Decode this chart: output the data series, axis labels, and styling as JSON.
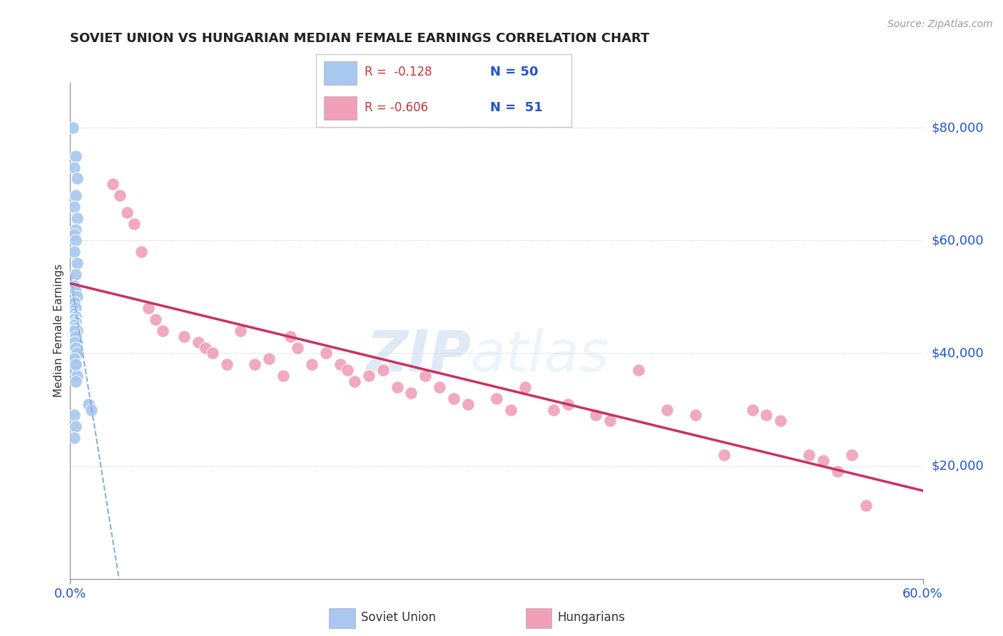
{
  "title": "SOVIET UNION VS HUNGARIAN MEDIAN FEMALE EARNINGS CORRELATION CHART",
  "source": "Source: ZipAtlas.com",
  "ylabel": "Median Female Earnings",
  "y_tick_labels": [
    "$20,000",
    "$40,000",
    "$60,000",
    "$80,000"
  ],
  "y_tick_values": [
    20000,
    40000,
    60000,
    80000
  ],
  "xlim": [
    0.0,
    0.6
  ],
  "ylim": [
    0,
    88000
  ],
  "legend_r_blue": "R =  -0.128",
  "legend_n_blue": "N = 50",
  "legend_r_pink": "R = -0.606",
  "legend_n_pink": "N =  51",
  "blue_color": "#a8c8f0",
  "pink_color": "#f0a0b8",
  "blue_line_color": "#8ab0d8",
  "pink_line_color": "#cc3060",
  "watermark_zip": "ZIP",
  "watermark_atlas": "atlas",
  "soviet_x": [
    0.002,
    0.004,
    0.003,
    0.005,
    0.004,
    0.003,
    0.005,
    0.004,
    0.003,
    0.004,
    0.003,
    0.005,
    0.004,
    0.003,
    0.004,
    0.005,
    0.003,
    0.004,
    0.003,
    0.004,
    0.003,
    0.004,
    0.003,
    0.004,
    0.005,
    0.003,
    0.004,
    0.003,
    0.005,
    0.004,
    0.003,
    0.005,
    0.004,
    0.003,
    0.004,
    0.003,
    0.005,
    0.004,
    0.003,
    0.004,
    0.003,
    0.004,
    0.005,
    0.003,
    0.004,
    0.013,
    0.015,
    0.003,
    0.004,
    0.003
  ],
  "soviet_y": [
    80000,
    75000,
    73000,
    71000,
    68000,
    66000,
    64000,
    62000,
    61000,
    60000,
    58000,
    56000,
    54000,
    52000,
    51000,
    50000,
    49000,
    48000,
    47000,
    46500,
    46000,
    45500,
    45000,
    44500,
    44000,
    43500,
    43000,
    42500,
    42000,
    41500,
    41000,
    40500,
    40000,
    39000,
    38000,
    37000,
    36000,
    35000,
    44000,
    43000,
    42000,
    41000,
    40000,
    39000,
    38000,
    31000,
    30000,
    29000,
    27000,
    25000
  ],
  "hungarian_x": [
    0.03,
    0.035,
    0.04,
    0.045,
    0.05,
    0.055,
    0.06,
    0.065,
    0.08,
    0.09,
    0.095,
    0.1,
    0.11,
    0.12,
    0.13,
    0.14,
    0.15,
    0.155,
    0.16,
    0.17,
    0.18,
    0.19,
    0.195,
    0.2,
    0.21,
    0.22,
    0.23,
    0.24,
    0.25,
    0.26,
    0.27,
    0.28,
    0.3,
    0.31,
    0.32,
    0.34,
    0.35,
    0.37,
    0.38,
    0.4,
    0.42,
    0.44,
    0.46,
    0.48,
    0.49,
    0.5,
    0.52,
    0.53,
    0.54,
    0.55,
    0.56
  ],
  "hungarian_y": [
    70000,
    68000,
    65000,
    63000,
    58000,
    48000,
    46000,
    44000,
    43000,
    42000,
    41000,
    40000,
    38000,
    44000,
    38000,
    39000,
    36000,
    43000,
    41000,
    38000,
    40000,
    38000,
    37000,
    35000,
    36000,
    37000,
    34000,
    33000,
    36000,
    34000,
    32000,
    31000,
    32000,
    30000,
    34000,
    30000,
    31000,
    29000,
    28000,
    37000,
    30000,
    29000,
    22000,
    30000,
    29000,
    28000,
    22000,
    21000,
    19000,
    22000,
    13000
  ]
}
